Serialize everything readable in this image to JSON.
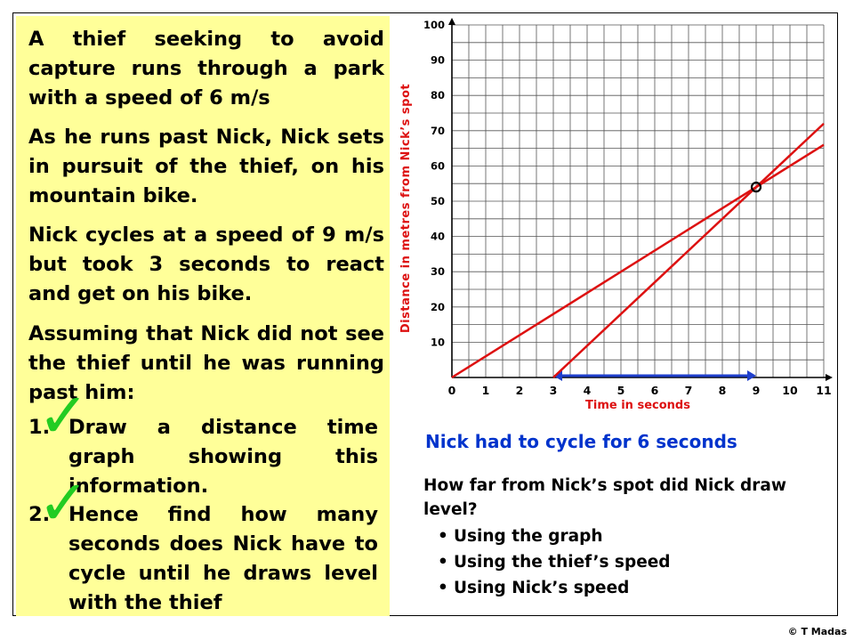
{
  "problem": {
    "para1": "A thief seeking to avoid capture runs through a park with a speed of 6 m/s",
    "para2": "As he runs past Nick, Nick sets in pursuit of the thief, on his mountain bike.",
    "para3": "Nick cycles at a speed of 9 m/s but took 3 seconds to react and get on his bike.",
    "para4": "Assuming that Nick did not see the thief until he was running past him:",
    "tasks": [
      {
        "number": "1.",
        "text": "Draw a distance time graph showing this information."
      },
      {
        "number": "2.",
        "text": "Hence find how many seconds does Nick have to cycle until he draws level with the thief"
      }
    ],
    "tick_mark": "✓"
  },
  "chart_data": {
    "type": "line",
    "xlabel": "Time in seconds",
    "ylabel": "Distance in metres from Nick’s spot",
    "xlim": [
      0,
      11
    ],
    "ylim": [
      0,
      100
    ],
    "x_ticks": [
      "0",
      "1",
      "2",
      "3",
      "4",
      "5",
      "6",
      "7",
      "8",
      "9",
      "10",
      "11"
    ],
    "y_ticks": [
      "10",
      "20",
      "30",
      "40",
      "50",
      "60",
      "70",
      "80",
      "90",
      "100"
    ],
    "grid": true,
    "series": [
      {
        "points": [
          [
            0,
            0
          ],
          [
            11,
            66
          ]
        ],
        "color": "#dd1111"
      },
      {
        "points": [
          [
            3,
            0
          ],
          [
            11,
            72
          ]
        ],
        "color": "#dd1111"
      }
    ],
    "intersection": {
      "x": 9,
      "y": 54
    },
    "interval": {
      "start": 3,
      "end": 9,
      "color": "#1f3fcc"
    }
  },
  "answer": "Nick had to cycle for 6 seconds",
  "question": "How far from Nick’s spot did Nick draw level?",
  "methods": [
    "Using the graph",
    "Using the thief’s speed",
    "Using Nick’s speed"
  ],
  "copyright": "© T Madas"
}
